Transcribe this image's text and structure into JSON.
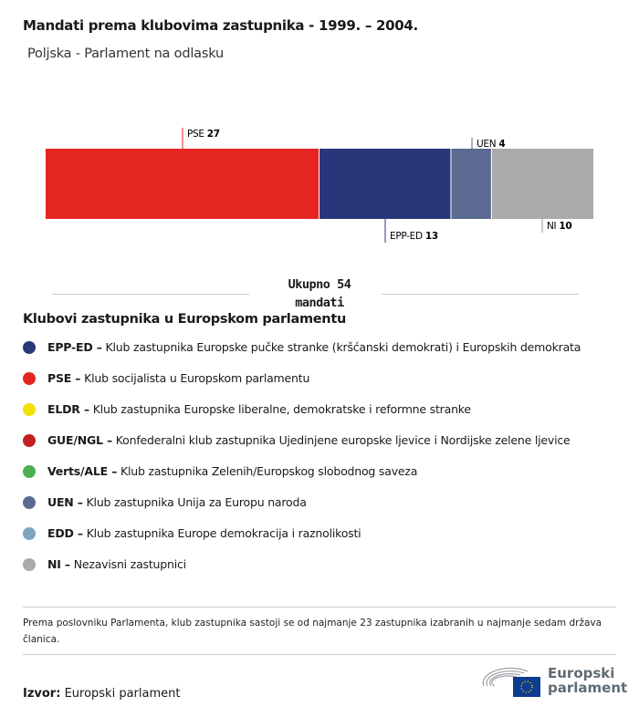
{
  "title": "Mandati prema klubovima zastupnika - 1999. – 2004.",
  "subtitle": "Poljska - Parlament na odlasku",
  "chart_data": {
    "type": "bar",
    "orientation": "horizontal-stacked",
    "categories": [
      "PSE",
      "EPP-ED",
      "UEN",
      "NI"
    ],
    "values": [
      27,
      13,
      4,
      10
    ],
    "colors": [
      "#e52521",
      "#283779",
      "#5a6a91",
      "#aaaaaa"
    ],
    "label_positions": [
      "top",
      "bottom",
      "top",
      "bottom"
    ],
    "total_label": "Ukupno 54 mandati"
  },
  "legend": {
    "title": "Klubovi zastupnika u Europskom parlamentu",
    "items": [
      {
        "abbr": "EPP-ED –",
        "text": "Klub zastupnika Europske pučke stranke (kršćanski demokrati) i Europskih demokrata",
        "color": "#283779"
      },
      {
        "abbr": "PSE –",
        "text": "Klub socijalista u Europskom parlamentu",
        "color": "#e52521"
      },
      {
        "abbr": "ELDR –",
        "text": "Klub zastupnika Europske liberalne, demokratske i reformne stranke",
        "color": "#f2e100"
      },
      {
        "abbr": "GUE/NGL –",
        "text": "Konfederalni klub zastupnika Ujedinjene europske ljevice i Nordijske zelene ljevice",
        "color": "#c1201f"
      },
      {
        "abbr": "Verts/ALE –",
        "text": "Klub zastupnika Zelenih/Europskog slobodnog saveza",
        "color": "#4caf50"
      },
      {
        "abbr": "UEN –",
        "text": "Klub zastupnika Unija za Europu naroda",
        "color": "#5a6a91"
      },
      {
        "abbr": "EDD –",
        "text": "Klub zastupnika Europe demokracija i raznolikosti",
        "color": "#7ea6c0"
      },
      {
        "abbr": "NI –",
        "text": "Nezavisni zastupnici",
        "color": "#aaaaaa"
      }
    ]
  },
  "note": "Prema poslovniku Parlamenta, klub zastupnika sastoji se od najmanje 23 zastupnika izabranih u najmanje sedam država članica.",
  "source": {
    "label": "Izvor:",
    "value": "Europski parlament"
  },
  "logo": {
    "line1": "Europski",
    "line2": "parlament"
  }
}
